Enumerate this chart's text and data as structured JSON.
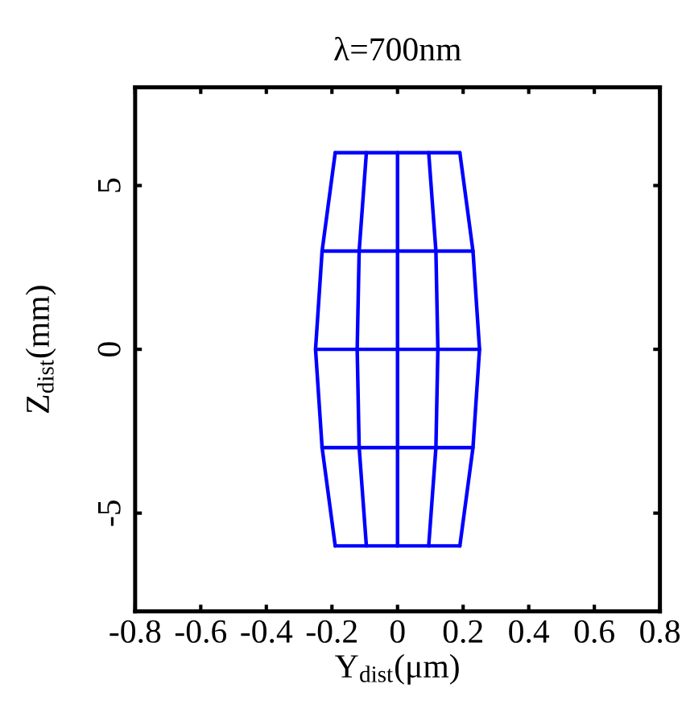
{
  "chart_data": {
    "type": "line",
    "title": "λ=700nm",
    "xlabel": "Y$_{dist}$(μm)",
    "ylabel": "Z$_{dist}$(mm)",
    "xlim": [
      -0.8,
      0.8
    ],
    "xticks": [
      -0.8,
      -0.6,
      -0.4,
      -0.2,
      0,
      0.2,
      0.4,
      0.6,
      0.8
    ],
    "ylim": [
      -8,
      8
    ],
    "yticks": [
      -5,
      0,
      5
    ],
    "marker": "none",
    "line_style": "solid",
    "series": [
      {
        "color": "#0000ff",
        "x": [
          -0.19,
          -0.095,
          0,
          0.095,
          0.19
        ],
        "values": [
          6,
          6,
          6,
          6,
          6
        ]
      },
      {
        "color": "#0000ff",
        "x": [
          -0.23,
          -0.117,
          0,
          0.117,
          0.23
        ],
        "values": [
          3,
          3,
          3,
          3,
          3
        ]
      },
      {
        "color": "#0000ff",
        "x": [
          -0.25,
          -0.123,
          0,
          0.123,
          0.25
        ],
        "values": [
          0,
          0,
          0,
          0,
          0
        ]
      },
      {
        "color": "#0000ff",
        "x": [
          -0.23,
          -0.117,
          0,
          0.117,
          0.23
        ],
        "values": [
          -3,
          -3,
          -3,
          -3,
          -3
        ]
      },
      {
        "color": "#0000ff",
        "x": [
          -0.19,
          -0.095,
          0,
          0.095,
          0.19
        ],
        "values": [
          -6,
          -6,
          -6,
          -6,
          -6
        ]
      },
      {
        "color": "#0000ff",
        "x": [
          -0.19,
          -0.23,
          -0.25,
          -0.23,
          -0.19
        ],
        "values": [
          6,
          3,
          0,
          -3,
          -6
        ]
      },
      {
        "color": "#0000ff",
        "x": [
          -0.095,
          -0.117,
          -0.123,
          -0.117,
          -0.095
        ],
        "values": [
          6,
          3,
          0,
          -3,
          -6
        ]
      },
      {
        "color": "#0000ff",
        "x": [
          0,
          0,
          0,
          0,
          0
        ],
        "values": [
          6,
          3,
          0,
          -3,
          -6
        ]
      },
      {
        "color": "#0000ff",
        "x": [
          0.095,
          0.117,
          0.123,
          0.117,
          0.095
        ],
        "values": [
          6,
          3,
          0,
          -3,
          -6
        ]
      },
      {
        "color": "#0000ff",
        "x": [
          0.19,
          0.23,
          0.25,
          0.23,
          0.19
        ],
        "values": [
          6,
          3,
          0,
          -3,
          -6
        ]
      }
    ]
  }
}
